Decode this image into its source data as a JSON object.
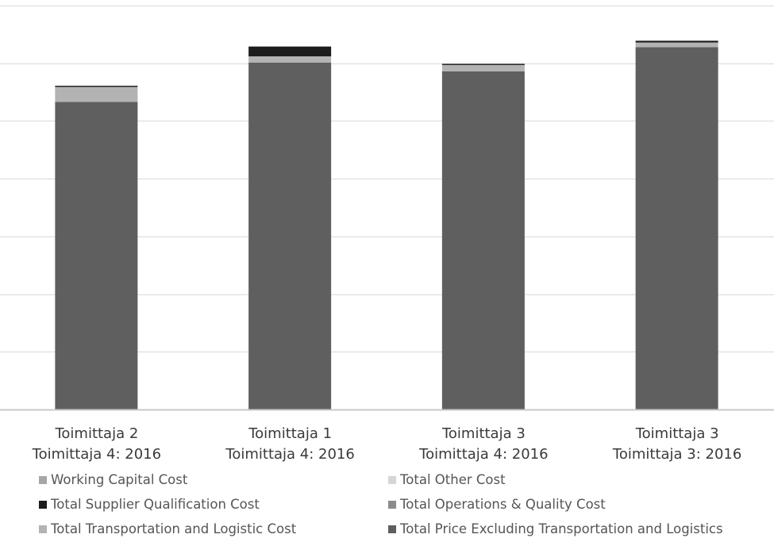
{
  "chart_data": {
    "type": "bar",
    "stacked": true,
    "categories": [
      [
        "Toimittaja 2",
        "Toimittaja 4: 2016"
      ],
      [
        "Toimittaja 1",
        "Toimittaja 4: 2016"
      ],
      [
        "Toimittaja 3",
        "Toimittaja 4: 2016"
      ],
      [
        "Toimittaja 3",
        "Toimittaja 3: 2016"
      ]
    ],
    "ylim": [
      0,
      70
    ],
    "grid": true,
    "legend_position": "bottom",
    "series": [
      {
        "name": "Total Price Excluding Transportation and Logistics",
        "color": "#5f5f5f",
        "values": [
          53.3,
          60.1,
          58.6,
          62.8
        ]
      },
      {
        "name": "Total Operations & Quality Cost",
        "color": "#8c8c8c",
        "values": [
          0,
          0,
          0,
          0
        ]
      },
      {
        "name": "Total Transportation and Logistic Cost",
        "color": "#b3b3b3",
        "values": [
          2.6,
          1.1,
          1.1,
          0.8
        ]
      },
      {
        "name": "Total Other Cost",
        "color": "#d6d6d6",
        "values": [
          0,
          0,
          0,
          0
        ]
      },
      {
        "name": "Total Supplier Qualification Cost",
        "color": "#1c1c1c",
        "values": [
          0.2,
          1.7,
          0.2,
          0.3
        ]
      },
      {
        "name": "Working Capital Cost",
        "color": "#a6a6a6",
        "values": [
          0,
          0,
          0,
          0
        ]
      }
    ],
    "legend_order": [
      "Working Capital Cost",
      "Total Other Cost",
      "Total Supplier Qualification Cost",
      "Total Operations & Quality Cost",
      "Total Transportation and Logistic Cost",
      "Total Price Excluding Transportation and Logistics"
    ]
  }
}
